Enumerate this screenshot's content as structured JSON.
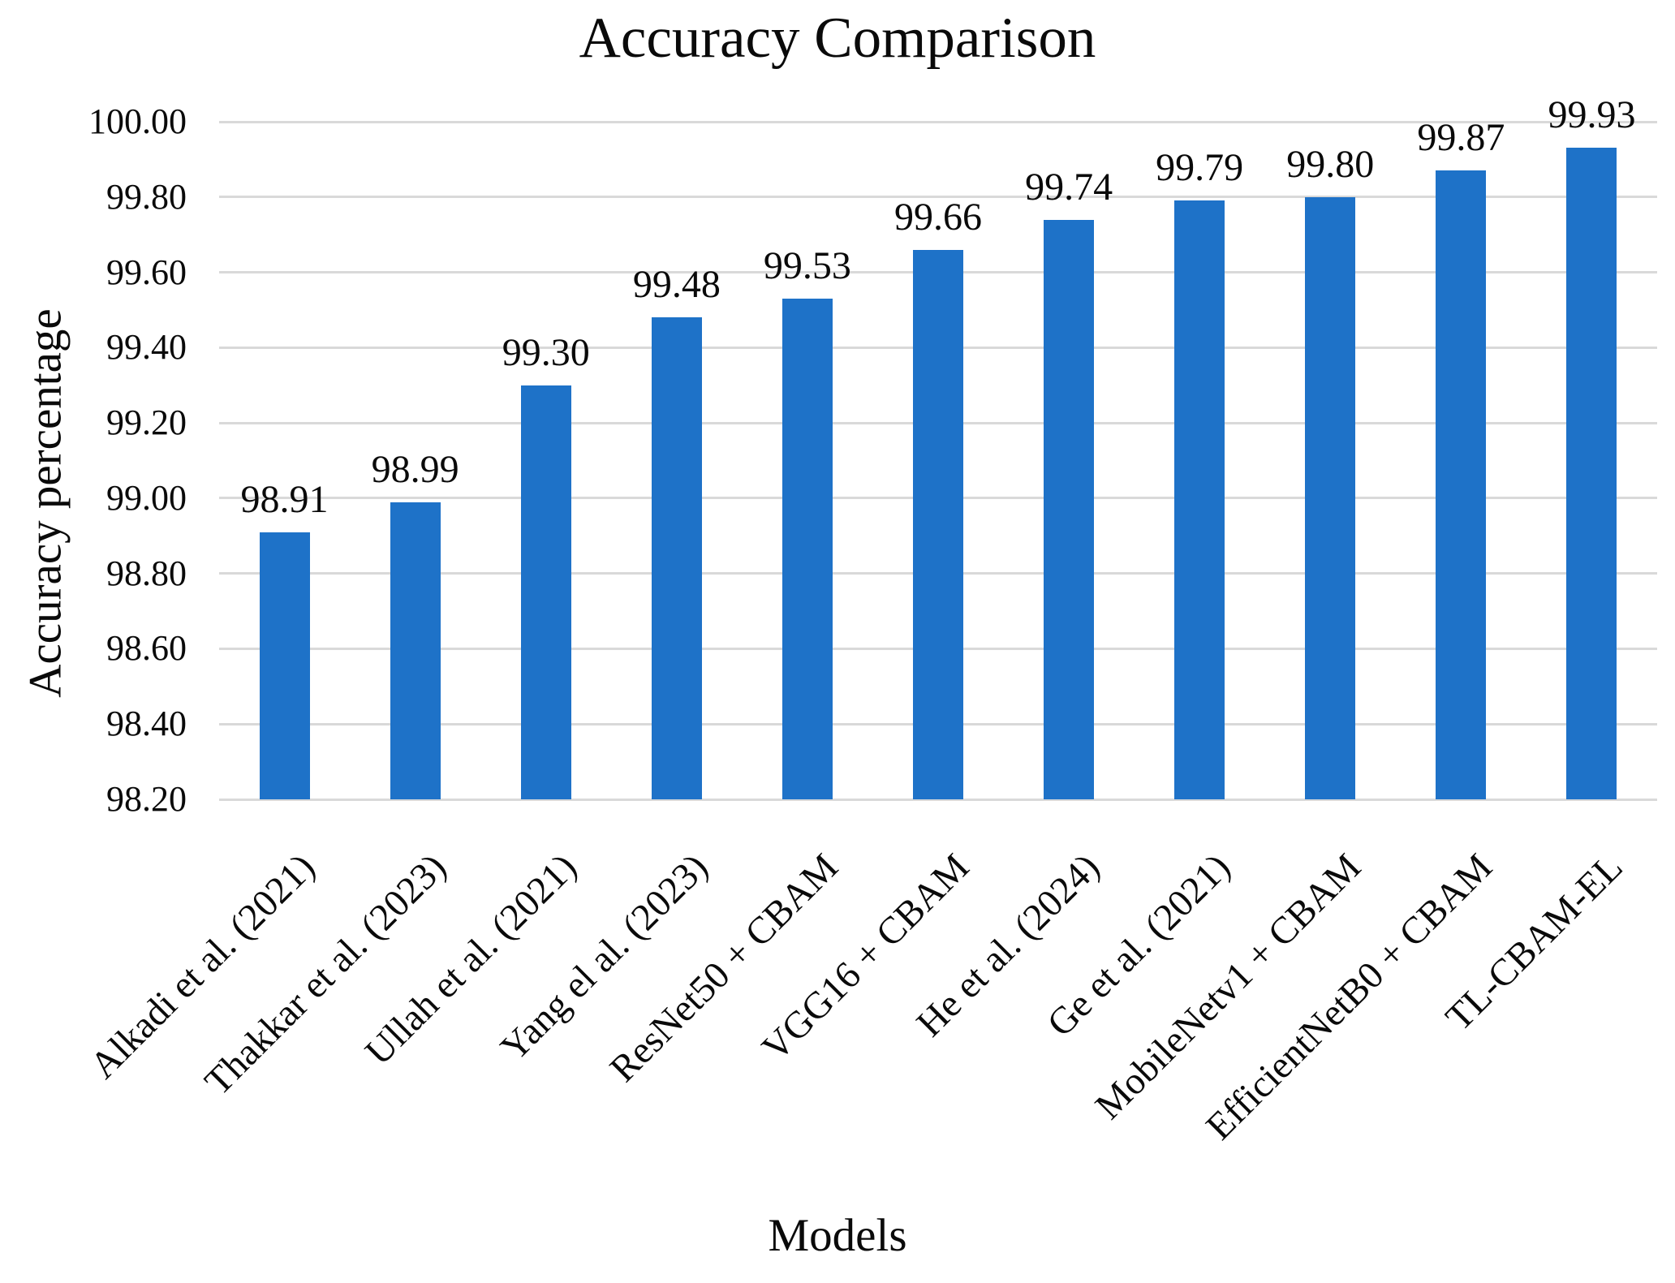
{
  "chart_data": {
    "type": "bar",
    "title": "Accuracy Comparison",
    "xlabel": "Models",
    "ylabel": "Accuracy percentage",
    "ylim": [
      98.2,
      100.0
    ],
    "ytick_step": 0.2,
    "ytick_labels": [
      "100.00",
      "99.80",
      "99.60",
      "99.40",
      "99.20",
      "99.00",
      "98.80",
      "98.60",
      "98.40",
      "98.20"
    ],
    "grid": "horizontal",
    "legend": "none",
    "categories": [
      "Alkadi et al. (2021)",
      "Thakkar et al. (2023)",
      "Ullah et al. (2021)",
      "Yang el al. (2023)",
      "ResNet50 + CBAM",
      "VGG16 + CBAM",
      "He et al. (2024)",
      "Ge et al. (2021)",
      "MobileNetv1 + CBAM",
      "EfficientNetB0 + CBAM",
      "TL-CBAM-EL"
    ],
    "values": [
      98.91,
      98.99,
      99.3,
      99.48,
      99.53,
      99.66,
      99.74,
      99.79,
      99.8,
      99.87,
      99.93
    ],
    "value_labels": [
      "98.91",
      "98.99",
      "99.30",
      "99.48",
      "99.53",
      "99.66",
      "99.74",
      "99.79",
      "99.80",
      "99.87",
      "99.93"
    ],
    "bar_color": "#1E72C8",
    "gridline_color": "#D9D9D9",
    "text_color": "#0a0a0a"
  }
}
